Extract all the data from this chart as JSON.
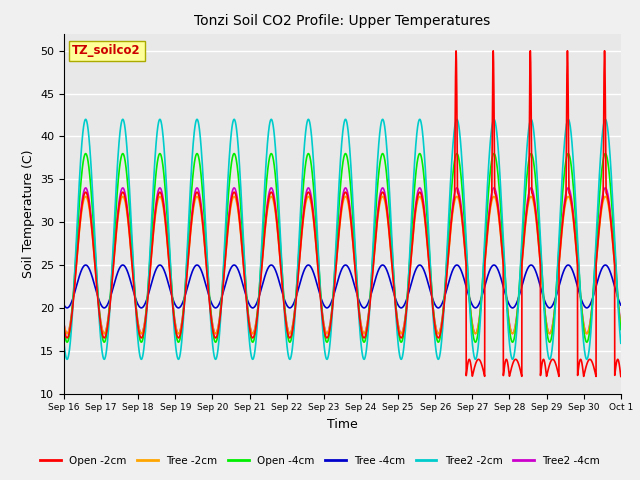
{
  "title": "Tonzi Soil CO2 Profile: Upper Temperatures",
  "xlabel": "Time",
  "ylabel": "Soil Temperature (C)",
  "ylim": [
    10,
    52
  ],
  "yticks": [
    10,
    15,
    20,
    25,
    30,
    35,
    40,
    45,
    50
  ],
  "plot_bg": "#e8e8e8",
  "series_colors": {
    "Open -2cm": "#ff0000",
    "Tree -2cm": "#ffa500",
    "Open -4cm": "#00ee00",
    "Tree -4cm": "#0000cc",
    "Tree2 -2cm": "#00cccc",
    "Tree2 -4cm": "#cc00cc"
  },
  "watermark_text": "TZ_soilco2",
  "watermark_color": "#cc0000",
  "watermark_bg": "#ffff99",
  "n_days": 15,
  "start_day": 16
}
